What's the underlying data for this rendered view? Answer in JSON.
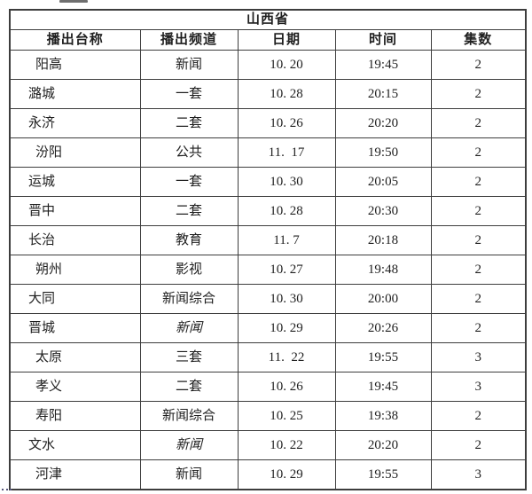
{
  "table": {
    "title": "山西省",
    "headers": [
      "播出台称",
      "播出频道",
      "日期",
      "时间",
      "集数"
    ],
    "rows": [
      {
        "station": "阳高",
        "indent": true,
        "channel": "新闻",
        "channel_italic": false,
        "date": "10. 20",
        "time": "19:45",
        "episodes": "2"
      },
      {
        "station": "潞城",
        "indent": false,
        "channel": "一套",
        "channel_italic": false,
        "date": "10. 28",
        "time": "20:15",
        "episodes": "2"
      },
      {
        "station": "永济",
        "indent": false,
        "channel": "二套",
        "channel_italic": false,
        "date": "10. 26",
        "time": "20:20",
        "episodes": "2"
      },
      {
        "station": "汾阳",
        "indent": true,
        "channel": "公共",
        "channel_italic": false,
        "date": "11.  17",
        "time": "19:50",
        "episodes": "2"
      },
      {
        "station": "运城",
        "indent": false,
        "channel": "一套",
        "channel_italic": false,
        "date": "10. 30",
        "time": "20:05",
        "episodes": "2"
      },
      {
        "station": "晋中",
        "indent": false,
        "channel": "二套",
        "channel_italic": false,
        "date": "10. 28",
        "time": "20:30",
        "episodes": "2"
      },
      {
        "station": "长治",
        "indent": false,
        "channel": "教育",
        "channel_italic": false,
        "date": "11. 7",
        "time": "20:18",
        "episodes": "2"
      },
      {
        "station": "朔州",
        "indent": true,
        "channel": "影视",
        "channel_italic": false,
        "date": "10. 27",
        "time": "19:48",
        "episodes": "2"
      },
      {
        "station": "大同",
        "indent": false,
        "channel": "新闻综合",
        "channel_italic": false,
        "date": "10. 30",
        "time": "20:00",
        "episodes": "2"
      },
      {
        "station": "晋城",
        "indent": false,
        "channel": "新闻",
        "channel_italic": true,
        "date": "10. 29",
        "time": "20:26",
        "episodes": "2"
      },
      {
        "station": "太原",
        "indent": true,
        "channel": "三套",
        "channel_italic": false,
        "date": "11.  22",
        "time": "19:55",
        "episodes": "3"
      },
      {
        "station": "孝义",
        "indent": true,
        "channel": "二套",
        "channel_italic": false,
        "date": "10. 26",
        "time": "19:45",
        "episodes": "3"
      },
      {
        "station": "寿阳",
        "indent": true,
        "channel": "新闻综合",
        "channel_italic": false,
        "date": "10. 25",
        "time": "19:38",
        "episodes": "2"
      },
      {
        "station": "文水",
        "indent": false,
        "channel": "新闻",
        "channel_italic": true,
        "date": "10. 22",
        "time": "20:20",
        "episodes": "2"
      },
      {
        "station": "河津",
        "indent": true,
        "channel": "新闻",
        "channel_italic": false,
        "date": "10. 29",
        "time": "19:55",
        "episodes": "3"
      }
    ]
  },
  "colors": {
    "border": "#3d3d3d",
    "text": "#1f1f1f",
    "background": "#ffffff"
  }
}
